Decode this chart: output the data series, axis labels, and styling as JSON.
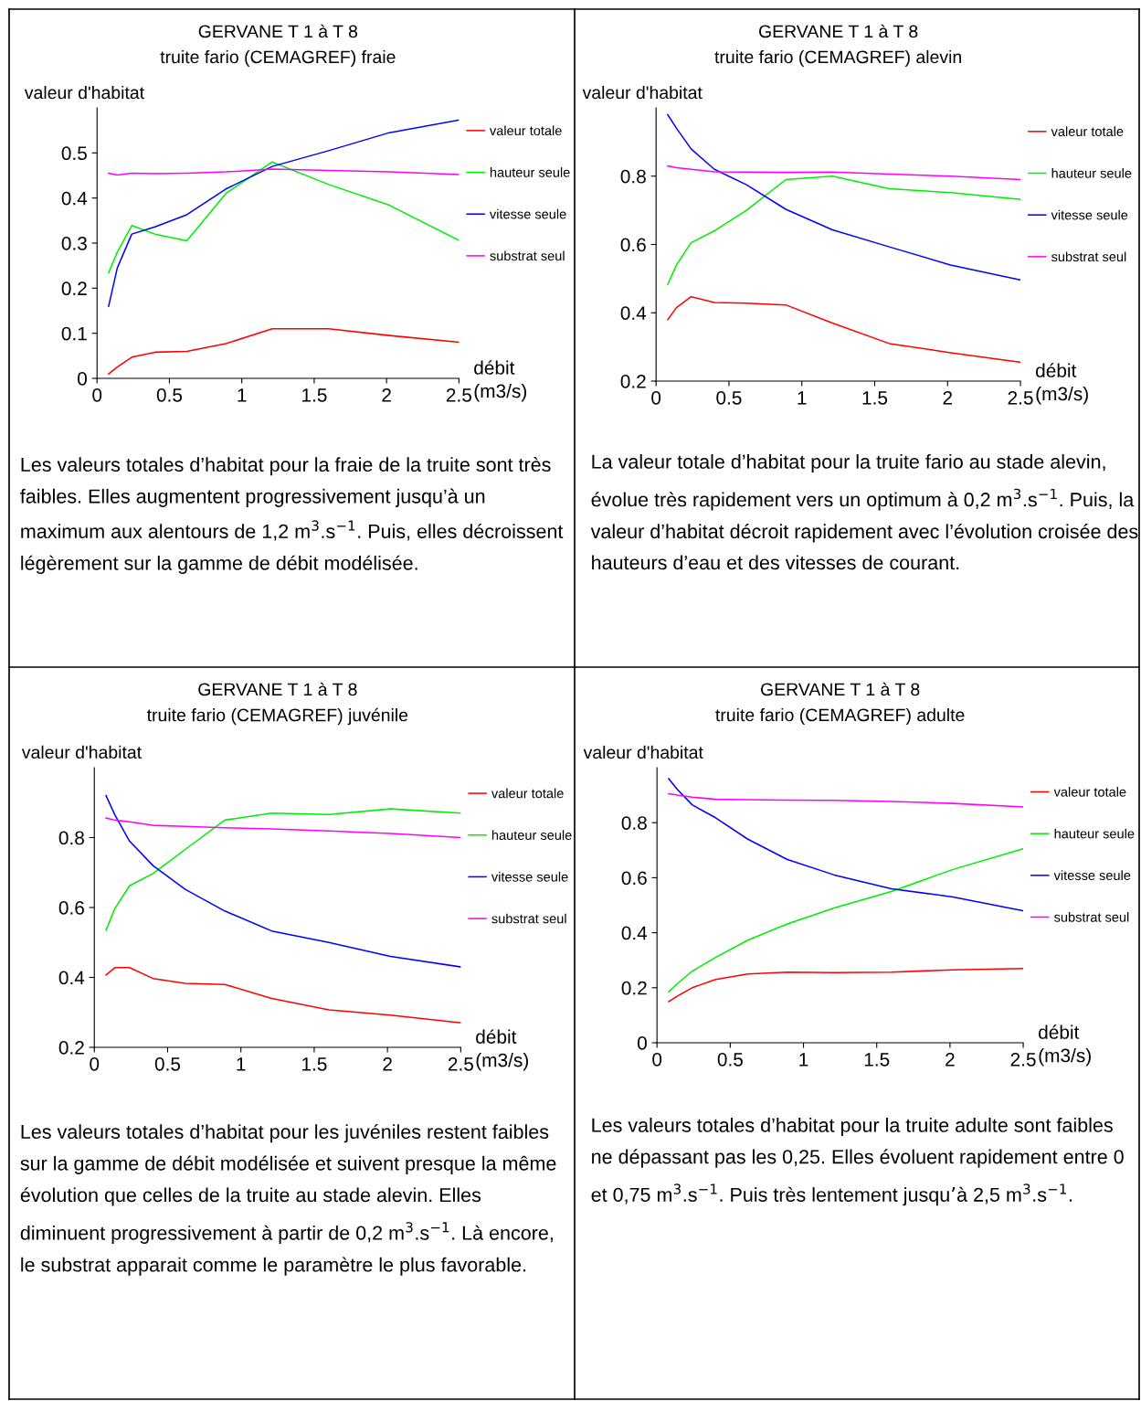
{
  "chart_data": [
    {
      "type": "line",
      "title": "GERVANE T 1 à T 8",
      "subtitle": "truite fario (CEMAGREF) fraie",
      "ylabel": "valeur d'habitat",
      "xlabel": "débit\n(m3/s)",
      "x": [
        0.08,
        0.14,
        0.24,
        0.4,
        0.62,
        0.89,
        1.21,
        1.6,
        2.02,
        2.5
      ],
      "series": [
        {
          "name": "valeur totale",
          "color": "#ff0000",
          "values": [
            0.01,
            0.025,
            0.047,
            0.058,
            0.06,
            0.077,
            0.11,
            0.11,
            0.095,
            0.08
          ]
        },
        {
          "name": "hauteur seule",
          "color": "#00ee00",
          "values": [
            0.234,
            0.28,
            0.339,
            0.32,
            0.305,
            0.41,
            0.48,
            0.43,
            0.384,
            0.306
          ]
        },
        {
          "name": "vitesse seule",
          "color": "#0000ff",
          "values": [
            0.16,
            0.245,
            0.32,
            0.336,
            0.363,
            0.42,
            0.47,
            0.505,
            0.545,
            0.573
          ]
        },
        {
          "name": "substrat seul",
          "color": "#ff00ff",
          "values": [
            0.455,
            0.451,
            0.455,
            0.454,
            0.455,
            0.458,
            0.464,
            0.461,
            0.458,
            0.452
          ]
        }
      ],
      "xlim": [
        0,
        2.5
      ],
      "ylim": [
        0,
        0.6
      ],
      "xticks": [
        0,
        0.5,
        1,
        1.5,
        2,
        2.5
      ],
      "yticks": [
        0,
        0.1,
        0.2,
        0.3,
        0.4,
        0.5
      ],
      "legend": "right",
      "grid": false,
      "annotations": [
        "Les valeurs totales d’habitat pour la fraie de la truite sont très faibles. Elles augmentent progressivement jusqu’à un maximum aux alentours de 1,2 m$^{3}$.s$^{−1}$. Puis, elles décroissent légèrement sur la gamme de débit modélisée."
      ]
    },
    {
      "type": "line",
      "title": "GERVANE T 1 à T 8",
      "subtitle": "truite fario (CEMAGREF) alevin",
      "ylabel": "valeur d'habitat",
      "xlabel": "débit\n(m3/s)",
      "x": [
        0.08,
        0.14,
        0.24,
        0.4,
        0.62,
        0.89,
        1.21,
        1.6,
        2.02,
        2.5
      ],
      "series": [
        {
          "name": "valeur totale",
          "color": "#ff0000",
          "values": [
            0.38,
            0.415,
            0.447,
            0.43,
            0.428,
            0.423,
            0.37,
            0.31,
            0.283,
            0.255
          ]
        },
        {
          "name": "hauteur seule",
          "color": "#00ee00",
          "values": [
            0.483,
            0.54,
            0.605,
            0.64,
            0.7,
            0.79,
            0.8,
            0.763,
            0.752,
            0.732
          ]
        },
        {
          "name": "vitesse seule",
          "color": "#0000ff",
          "values": [
            0.98,
            0.94,
            0.88,
            0.82,
            0.775,
            0.703,
            0.643,
            0.593,
            0.54,
            0.496
          ]
        },
        {
          "name": "substrat seul",
          "color": "#ff00ff",
          "values": [
            0.83,
            0.825,
            0.82,
            0.813,
            0.812,
            0.811,
            0.812,
            0.806,
            0.8,
            0.79
          ]
        }
      ],
      "xlim": [
        0,
        2.5
      ],
      "ylim": [
        0.2,
        1.0
      ],
      "xticks": [
        0,
        0.5,
        1,
        1.5,
        2,
        2.5
      ],
      "yticks": [
        0.2,
        0.4,
        0.6,
        0.8
      ],
      "legend": "right",
      "grid": false,
      "annotations": [
        "La valeur totale d’habitat pour la truite fario au stade alevin, évolue très rapidement vers un optimum à 0,2 m$^{3}$.s$^{−1}$. Puis, la valeur d’habitat décroit rapidement avec l’évolution croisée des hauteurs d’eau et des vitesses de courant."
      ]
    },
    {
      "type": "line",
      "title": "GERVANE T 1 à T 8",
      "subtitle": "truite fario (CEMAGREF) juvénile",
      "ylabel": "valeur d'habitat",
      "xlabel": "débit\n(m3/s)",
      "x": [
        0.08,
        0.14,
        0.24,
        0.4,
        0.62,
        0.89,
        1.21,
        1.6,
        2.02,
        2.5
      ],
      "series": [
        {
          "name": "valeur totale",
          "color": "#ff0000",
          "values": [
            0.407,
            0.428,
            0.428,
            0.397,
            0.383,
            0.38,
            0.34,
            0.307,
            0.292,
            0.27
          ]
        },
        {
          "name": "hauteur seule",
          "color": "#00ee00",
          "values": [
            0.535,
            0.597,
            0.662,
            0.697,
            0.766,
            0.85,
            0.87,
            0.866,
            0.882,
            0.87
          ]
        },
        {
          "name": "vitesse seule",
          "color": "#0000ff",
          "values": [
            0.92,
            0.865,
            0.79,
            0.72,
            0.652,
            0.59,
            0.533,
            0.5,
            0.46,
            0.43
          ]
        },
        {
          "name": "substrat seul",
          "color": "#ff00ff",
          "values": [
            0.856,
            0.85,
            0.845,
            0.835,
            0.832,
            0.828,
            0.825,
            0.819,
            0.812,
            0.8
          ]
        }
      ],
      "xlim": [
        0,
        2.5
      ],
      "ylim": [
        0.2,
        1.0
      ],
      "xticks": [
        0,
        0.5,
        1,
        1.5,
        2,
        2.5
      ],
      "yticks": [
        0.2,
        0.4,
        0.6,
        0.8
      ],
      "legend": "right",
      "grid": false,
      "annotations": [
        "Les valeurs totales d’habitat pour les juvéniles restent faibles sur la gamme de débit modélisée et suivent presque la même évolution que celles de la truite au stade alevin. Elles diminuent progressivement à partir de 0,2 m$^{3}$.s$^{−1}$. Là encore, le substrat apparait comme le paramètre le plus favorable."
      ]
    },
    {
      "type": "line",
      "title": "GERVANE T 1 à T 8",
      "subtitle": "truite fario (CEMAGREF) adulte",
      "ylabel": "valeur d'habitat",
      "xlabel": "débit\n(m3/s)",
      "x": [
        0.08,
        0.14,
        0.24,
        0.4,
        0.62,
        0.89,
        1.21,
        1.6,
        2.02,
        2.5
      ],
      "series": [
        {
          "name": "valeur totale",
          "color": "#ff0000",
          "values": [
            0.15,
            0.17,
            0.2,
            0.23,
            0.25,
            0.257,
            0.255,
            0.257,
            0.265,
            0.27
          ]
        },
        {
          "name": "hauteur seule",
          "color": "#00ee00",
          "values": [
            0.185,
            0.215,
            0.26,
            0.31,
            0.373,
            0.432,
            0.49,
            0.55,
            0.63,
            0.705
          ]
        },
        {
          "name": "vitesse seule",
          "color": "#0000ff",
          "values": [
            0.96,
            0.92,
            0.865,
            0.818,
            0.74,
            0.666,
            0.61,
            0.56,
            0.53,
            0.48
          ]
        },
        {
          "name": "substrat seul",
          "color": "#ff00ff",
          "values": [
            0.905,
            0.9,
            0.893,
            0.885,
            0.884,
            0.882,
            0.881,
            0.877,
            0.87,
            0.857
          ]
        }
      ],
      "xlim": [
        0,
        2.5
      ],
      "ylim": [
        0,
        1.0
      ],
      "xticks": [
        0,
        0.5,
        1,
        1.5,
        2,
        2.5
      ],
      "yticks": [
        0,
        0.2,
        0.4,
        0.6,
        0.8
      ],
      "legend": "right",
      "grid": false,
      "annotations": [
        "Les valeurs totales d’habitat pour la truite adulte sont faibles ne dépassant pas les 0,25. Elles évoluent rapidement entre 0 et 0,75 m$^{3}$.s$^{−1}$. Puis très lentement jusqu’à 2,5 m$^{3}$.s$^{−1}$."
      ]
    }
  ]
}
